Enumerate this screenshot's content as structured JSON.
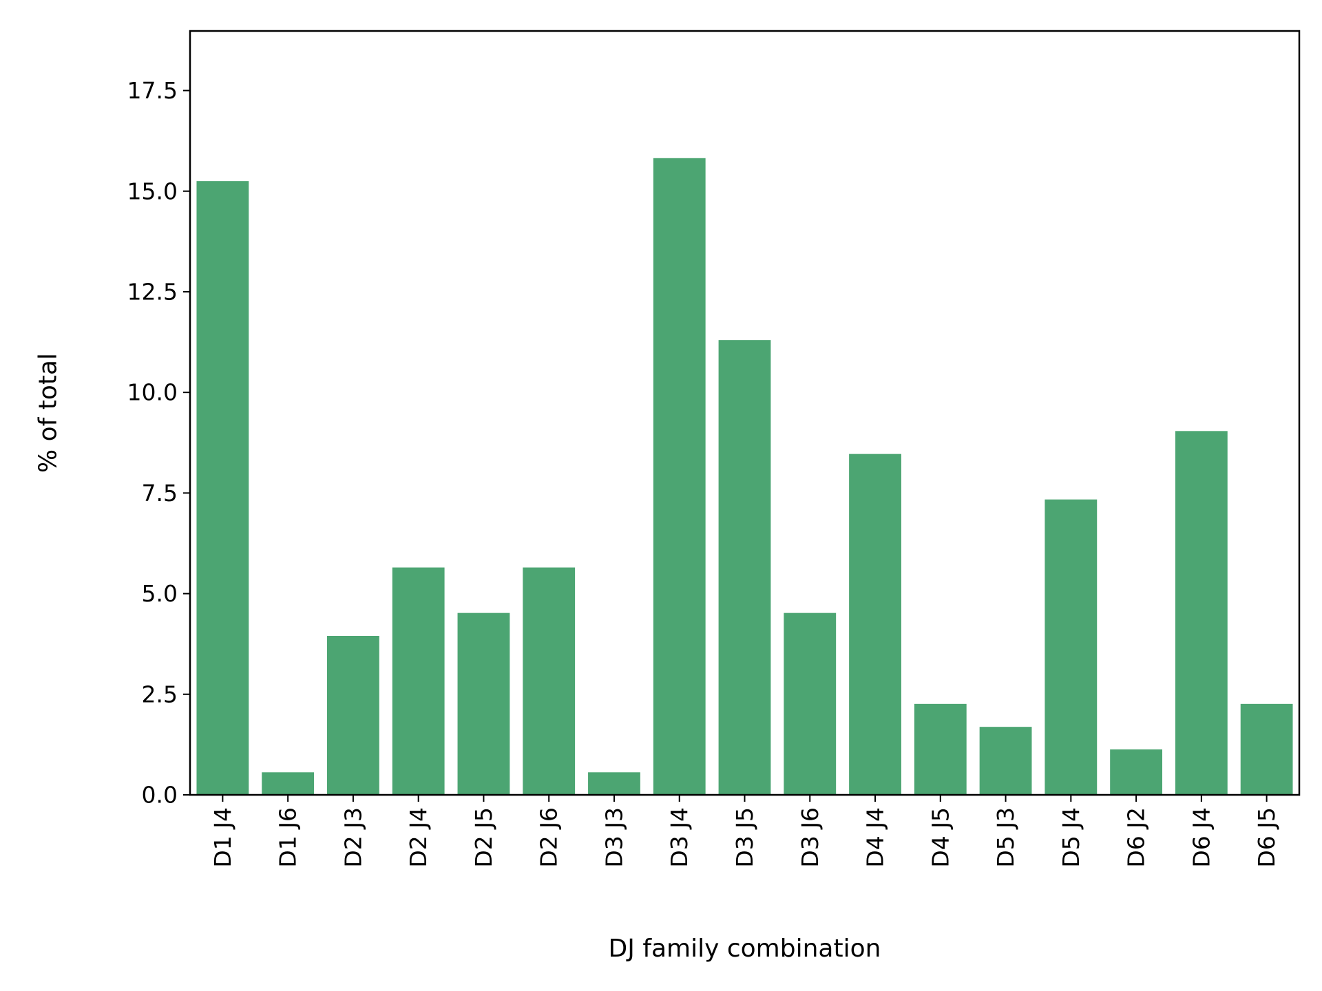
{
  "chart_data": {
    "type": "bar",
    "title": "",
    "xlabel": "DJ family combination",
    "ylabel": "% of total",
    "categories": [
      "D1 J4",
      "D1 J6",
      "D2 J3",
      "D2 J4",
      "D2 J5",
      "D2 J6",
      "D3 J3",
      "D3 J4",
      "D3 J5",
      "D3 J6",
      "D4 J4",
      "D4 J5",
      "D5 J3",
      "D5 J4",
      "D6 J2",
      "D6 J4",
      "D6 J5"
    ],
    "values": [
      15.25,
      0.56,
      3.95,
      5.65,
      4.52,
      5.65,
      0.56,
      15.82,
      11.3,
      4.52,
      8.47,
      2.26,
      1.69,
      7.34,
      1.13,
      9.04,
      2.26
    ],
    "ylim": [
      0,
      18.98
    ],
    "yticks": [
      "0.0",
      "2.5",
      "5.0",
      "7.5",
      "10.0",
      "12.5",
      "15.0",
      "17.5"
    ],
    "grid": false,
    "legend": "none",
    "bar_color": "#4ca572"
  }
}
